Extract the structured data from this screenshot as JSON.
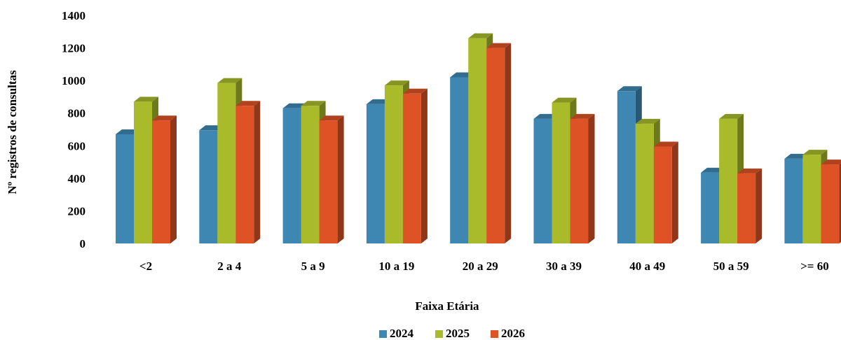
{
  "chart_data": {
    "type": "bar",
    "categories": [
      "<2",
      "2 a 4",
      "5 a 9",
      "10 a 19",
      "20 a 29",
      "30 a 39",
      "40 a 49",
      "50 a 59",
      ">= 60"
    ],
    "series": [
      {
        "name": "2024",
        "color": "#3f87b3",
        "values": [
          670,
          695,
          830,
          855,
          1020,
          765,
          935,
          435,
          520
        ]
      },
      {
        "name": "2025",
        "color": "#a9ba2b",
        "values": [
          870,
          985,
          845,
          970,
          1260,
          865,
          735,
          765,
          545
        ]
      },
      {
        "name": "2026",
        "color": "#dd5326",
        "values": [
          755,
          845,
          755,
          920,
          1200,
          765,
          595,
          430,
          485
        ]
      }
    ],
    "title": "",
    "xlabel": "Faixa Etária",
    "ylabel": "Nº registros de consultas",
    "ylim": [
      0,
      1400
    ],
    "yticks": [
      0,
      200,
      400,
      600,
      800,
      1000,
      1200,
      1400
    ],
    "grid": false,
    "legend_position": "bottom",
    "style": "3d-clustered-bar"
  }
}
